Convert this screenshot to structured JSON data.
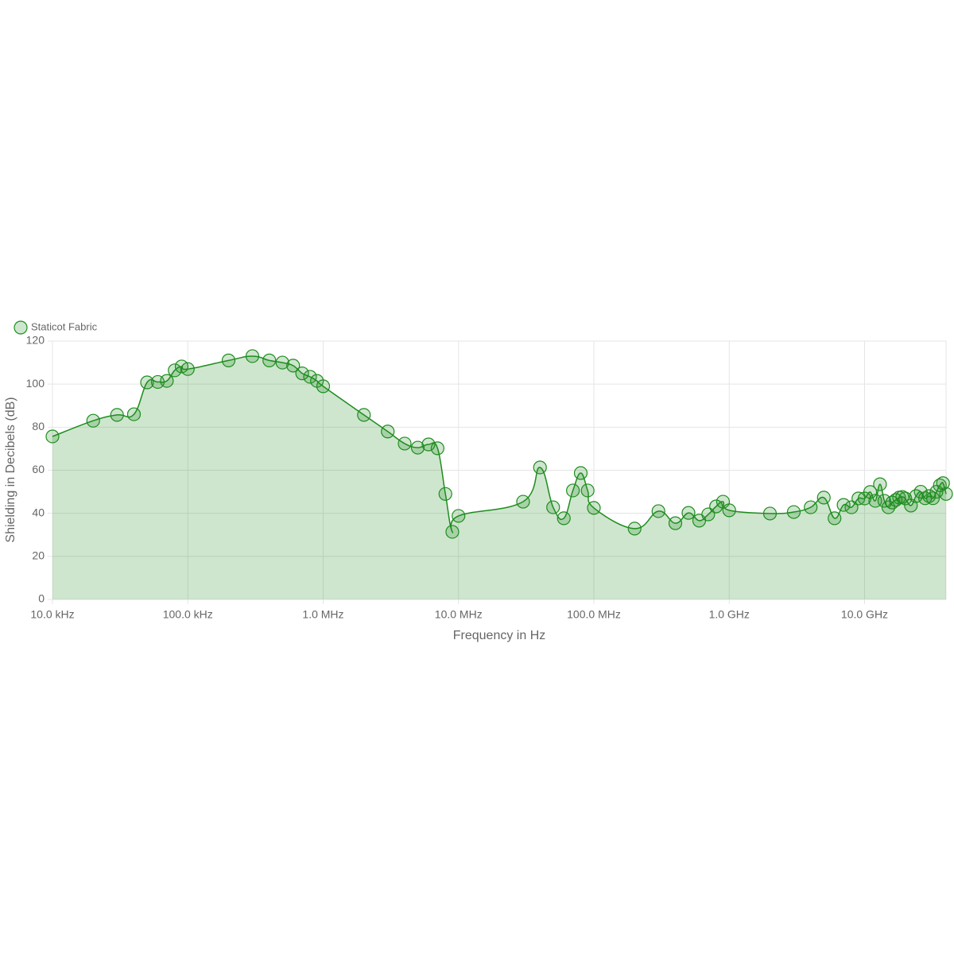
{
  "chart_data": {
    "type": "line",
    "xlabel": "Frequency in Hz",
    "ylabel": "Shielding in Decibels (dB)",
    "xscale": "log",
    "grid": true,
    "legend": "top-left",
    "fill": true,
    "xlim": [
      10000,
      40000000000
    ],
    "ylim": [
      0,
      120
    ],
    "xticks": [
      {
        "value": 10000,
        "label": "10.0 kHz"
      },
      {
        "value": 100000,
        "label": "100.0 kHz"
      },
      {
        "value": 1000000,
        "label": "1.0 MHz"
      },
      {
        "value": 10000000,
        "label": "10.0 MHz"
      },
      {
        "value": 100000000,
        "label": "100.0 MHz"
      },
      {
        "value": 1000000000,
        "label": "1.0 GHz"
      },
      {
        "value": 10000000000,
        "label": "10.0 GHz"
      }
    ],
    "yticks": [
      0,
      20,
      40,
      60,
      80,
      100,
      120
    ],
    "x": [
      10000,
      20000,
      30000,
      40000,
      50000,
      60000,
      70000,
      80000,
      90000,
      100000,
      200000,
      300000,
      400000,
      500000,
      600000,
      700000,
      800000,
      900000,
      1000000,
      2000000,
      3000000,
      4000000,
      5000000,
      6000000,
      7000000,
      8000000,
      9000000,
      10000000,
      30000000,
      40000000,
      50000000,
      60000000,
      70000000,
      80000000,
      90000000,
      100000000,
      200000000,
      300000000,
      400000000,
      500000000,
      600000000,
      700000000,
      800000000,
      900000000,
      1000000000,
      2000000000,
      3000000000,
      4000000000,
      5000000000,
      6000000000,
      7000000000,
      8000000000,
      9000000000,
      10000000000,
      11000000000,
      12000000000,
      13000000000,
      14000000000,
      15000000000,
      16000000000,
      17000000000,
      18000000000,
      19000000000,
      20000000000,
      22000000000,
      24000000000,
      26000000000,
      28000000000,
      30000000000,
      32000000000,
      34000000000,
      36000000000,
      38000000000,
      40000000000
    ],
    "series": [
      {
        "name": "Staticot Fabric",
        "color": "#1e8c1e",
        "values": [
          75.7,
          83,
          85.7,
          86,
          100.8,
          101,
          101.5,
          106.4,
          108.2,
          107,
          111,
          113,
          111,
          110,
          108.6,
          105,
          103.4,
          101.5,
          99,
          85.7,
          78,
          72.4,
          70.5,
          72,
          70.2,
          49,
          31.4,
          38.8,
          45.4,
          61.3,
          42.8,
          37.7,
          50.6,
          58.7,
          50.6,
          42.5,
          32.9,
          41,
          35.4,
          40.2,
          36.6,
          39.5,
          43.2,
          45.4,
          41.4,
          39.9,
          40.6,
          42.8,
          47.3,
          37.7,
          43.9,
          42.8,
          46.9,
          46.9,
          49.9,
          45.8,
          53.5,
          45.8,
          42.8,
          45,
          46.2,
          47.3,
          47.6,
          46.9,
          43.6,
          48,
          50,
          47,
          48,
          47,
          50,
          53,
          54,
          49
        ]
      }
    ]
  }
}
